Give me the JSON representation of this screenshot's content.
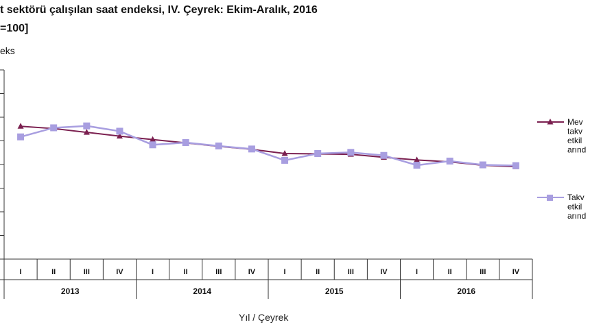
{
  "title_line1": "t sektörü çalışılan saat endeksi, IV. Çeyrek: Ekim-Aralık, 2016",
  "title_line2": "=100]",
  "chart_data": {
    "type": "line",
    "ylabel": "eks",
    "xlabel": "Yıl / Çeyrek",
    "years": [
      "2013",
      "2014",
      "2015",
      "2016"
    ],
    "quarters": [
      "I",
      "II",
      "III",
      "IV"
    ],
    "ylim": [
      0,
      100
    ],
    "series": [
      {
        "name": "Mev takv etkil arınd",
        "color": "#7b2050",
        "marker": "triangle",
        "values": [
          70.2,
          69.0,
          67.0,
          65.0,
          63.2,
          61.4,
          59.6,
          58.0,
          55.8,
          55.6,
          55.4,
          53.8,
          52.4,
          51.4,
          49.6,
          48.8
        ]
      },
      {
        "name": "Takv etkil arınd",
        "color": "#a89ee0",
        "marker": "square",
        "values": [
          64.6,
          69.4,
          70.4,
          67.6,
          60.4,
          61.6,
          59.8,
          58.2,
          52.2,
          55.8,
          56.4,
          54.8,
          49.6,
          51.8,
          49.8,
          49.4
        ]
      }
    ]
  }
}
